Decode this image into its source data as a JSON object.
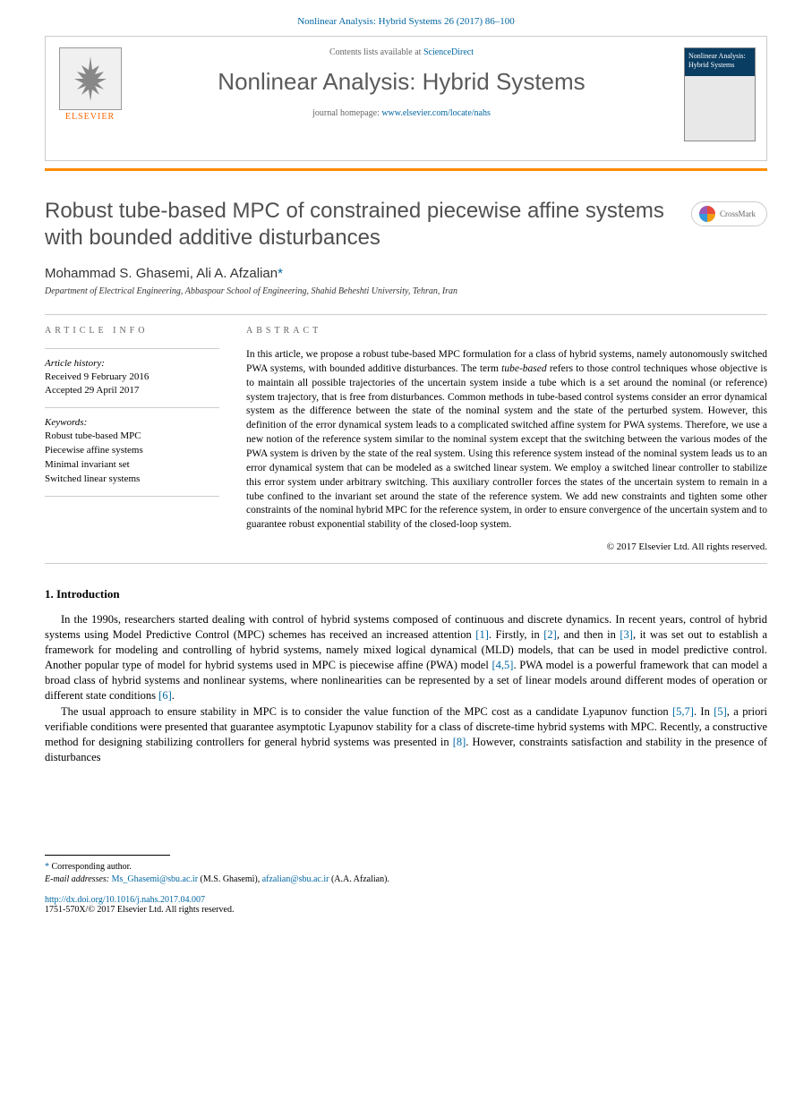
{
  "journal_ref": "Nonlinear Analysis: Hybrid Systems 26 (2017) 86–100",
  "header": {
    "contents_prefix": "Contents lists available at ",
    "contents_link": "ScienceDirect",
    "journal_name": "Nonlinear Analysis: Hybrid Systems",
    "homepage_prefix": "journal homepage: ",
    "homepage_link": "www.elsevier.com/locate/nahs",
    "publisher": "ELSEVIER",
    "cover_title": "Nonlinear Analysis: Hybrid Systems"
  },
  "crossmark": "CrossMark",
  "title": "Robust tube-based MPC of constrained piecewise affine systems with bounded additive disturbances",
  "authors": {
    "line": "Mohammad S. Ghasemi, Ali A. Afzalian",
    "corr": "*"
  },
  "affiliation": "Department of Electrical Engineering, Abbaspour School of Engineering, Shahid Beheshti University, Tehran, Iran",
  "info": {
    "heading": "ARTICLE INFO",
    "history_label": "Article history:",
    "received": "Received 9 February 2016",
    "accepted": "Accepted 29 April 2017",
    "keywords_label": "Keywords:",
    "keywords": [
      "Robust tube-based MPC",
      "Piecewise affine systems",
      "Minimal invariant set",
      "Switched linear systems"
    ]
  },
  "abstract": {
    "heading": "ABSTRACT",
    "p1a": "In this article, we propose a robust tube-based MPC formulation for a class of hybrid systems, namely autonomously switched PWA systems, with bounded additive disturbances. The term ",
    "p1_em": "tube-based",
    "p1b": " refers to those control techniques whose objective is to maintain all possible trajectories of the uncertain system inside a tube which is a set around the nominal (or reference) system trajectory, that is free from disturbances. Common methods in tube-based control systems consider an error dynamical system as the difference between the state of the nominal system and the state of the perturbed system. However, this definition of the error dynamical system leads to a complicated switched affine system for PWA systems. Therefore, we use a new notion of the reference system similar to the nominal system except that the switching between the various modes of the PWA system is driven by the state of the real system. Using this reference system instead of the nominal system leads us to an error dynamical system that can be modeled as a switched linear system. We employ a switched linear controller to stabilize this error system under arbitrary switching. This auxiliary controller forces the states of the uncertain system to remain in a tube confined to the invariant set around the state of the reference system. We add new constraints and tighten some other constraints of the nominal hybrid MPC for the reference system, in order to ensure convergence of the uncertain system and to guarantee robust exponential stability of the closed-loop system.",
    "copyright": "© 2017 Elsevier Ltd. All rights reserved."
  },
  "intro": {
    "heading": "1.  Introduction",
    "para1": "In the 1990s, researchers started dealing with control of hybrid systems composed of continuous and discrete dynamics. In recent years, control of hybrid systems using Model Predictive Control (MPC) schemes has received an increased attention [1]. Firstly, in [2], and then in [3], it was set out to establish a framework for modeling and controlling of hybrid systems, namely mixed logical dynamical (MLD) models, that can be used in model predictive control. Another popular type of model for hybrid systems used in MPC is piecewise affine (PWA) model [4,5]. PWA model is a powerful framework that can model a broad class of hybrid systems and nonlinear systems, where nonlinearities can be represented by a set of linear models around different modes of operation or different state conditions [6].",
    "para2": "The usual approach to ensure stability in MPC is to consider the value function of the MPC cost as a candidate Lyapunov function [5,7]. In [5], a priori verifiable conditions were presented that guarantee asymptotic Lyapunov stability for a class of discrete-time hybrid systems with MPC. Recently, a constructive method for designing stabilizing controllers for general hybrid systems was presented in [8]. However, constraints satisfaction and stability in the presence of disturbances"
  },
  "footer": {
    "corr_label": "Corresponding author.",
    "email_label": "E-mail addresses:",
    "email1": "Ms_Ghasemi@sbu.ac.ir",
    "email1_who": " (M.S. Ghasemi), ",
    "email2": "afzalian@sbu.ac.ir",
    "email2_who": " (A.A. Afzalian).",
    "doi": "http://dx.doi.org/10.1016/j.nahs.2017.04.007",
    "issn": "1751-570X/© 2017 Elsevier Ltd. All rights reserved."
  },
  "colors": {
    "link": "#0066a1",
    "orange": "#ff8c00",
    "title_gray": "#505050",
    "text": "#000000"
  }
}
